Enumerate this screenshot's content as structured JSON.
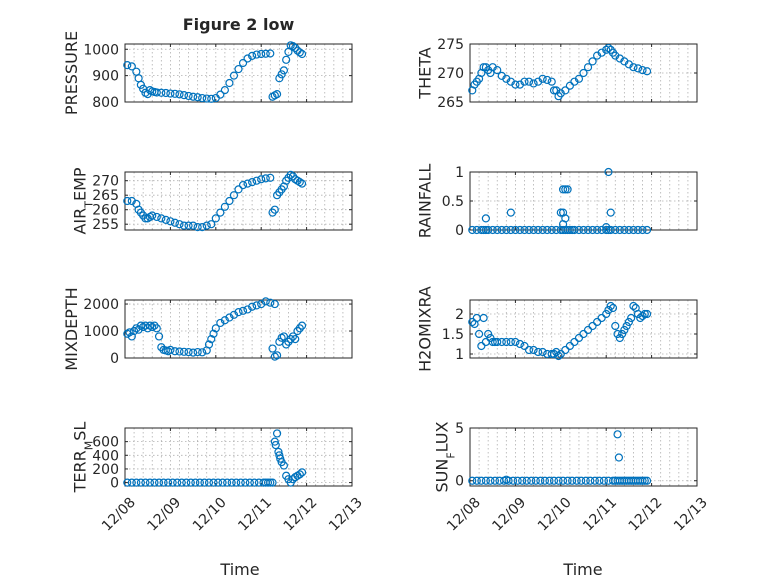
{
  "figure": {
    "x_label": "Time"
  },
  "chart_data": [
    {
      "id": "pressure",
      "type": "scatter",
      "title": "Figure 2 low",
      "ylabel": "PRESSURE",
      "xlim": [
        0,
        5
      ],
      "ylim": [
        800,
        1020
      ],
      "xticks": [
        0,
        1,
        2,
        3,
        4,
        5
      ],
      "xticklabels": [
        "12/08",
        "12/09",
        "12/10",
        "12/11",
        "12/12",
        "12/13"
      ],
      "yticks": [
        800,
        900,
        1000
      ],
      "yticklabels": [
        "800",
        "900",
        "1000"
      ],
      "yticklabel_parts": [
        [
          "800"
        ],
        [
          "900"
        ],
        [
          "1000"
        ]
      ],
      "x": [
        0.05,
        0.15,
        0.25,
        0.3,
        0.35,
        0.4,
        0.45,
        0.5,
        0.55,
        0.6,
        0.65,
        0.7,
        0.8,
        0.9,
        1.0,
        1.1,
        1.2,
        1.3,
        1.4,
        1.5,
        1.6,
        1.7,
        1.8,
        1.9,
        2.0,
        2.1,
        2.2,
        2.3,
        2.4,
        2.5,
        2.6,
        2.7,
        2.8,
        2.9,
        3.0,
        3.1,
        3.2,
        3.25,
        3.3,
        3.35,
        3.4,
        3.45,
        3.5,
        3.55,
        3.6,
        3.65,
        3.7,
        3.75,
        3.8,
        3.85,
        3.9
      ],
      "y": [
        940,
        935,
        915,
        890,
        865,
        850,
        835,
        830,
        845,
        840,
        838,
        836,
        835,
        834,
        832,
        831,
        829,
        826,
        823,
        820,
        818,
        815,
        813,
        812,
        815,
        828,
        845,
        872,
        900,
        925,
        948,
        965,
        975,
        980,
        982,
        983,
        984,
        820,
        825,
        830,
        890,
        905,
        920,
        960,
        990,
        1015,
        1012,
        1005,
        995,
        988,
        982
      ]
    },
    {
      "id": "theta",
      "type": "scatter",
      "title": "",
      "ylabel": "THETA",
      "xlim": [
        0,
        5
      ],
      "ylim": [
        265,
        275
      ],
      "xticks": [
        0,
        1,
        2,
        3,
        4,
        5
      ],
      "xticklabels": [
        "12/08",
        "12/09",
        "12/10",
        "12/11",
        "12/12",
        "12/13"
      ],
      "yticks": [
        265,
        270,
        275
      ],
      "yticklabels": [
        "265",
        "270",
        "275"
      ],
      "yticklabel_parts": [
        [
          "265"
        ],
        [
          "270"
        ],
        [
          "275"
        ]
      ],
      "x": [
        0.05,
        0.1,
        0.15,
        0.2,
        0.25,
        0.3,
        0.35,
        0.4,
        0.45,
        0.5,
        0.6,
        0.7,
        0.8,
        0.9,
        1.0,
        1.1,
        1.2,
        1.3,
        1.4,
        1.5,
        1.6,
        1.7,
        1.8,
        1.85,
        1.9,
        1.95,
        2.0,
        2.1,
        2.2,
        2.3,
        2.4,
        2.5,
        2.6,
        2.7,
        2.8,
        2.9,
        3.0,
        3.05,
        3.1,
        3.15,
        3.2,
        3.3,
        3.4,
        3.5,
        3.6,
        3.7,
        3.8,
        3.9
      ],
      "y": [
        267,
        268,
        268.5,
        269,
        270,
        271,
        271,
        270.5,
        270,
        271,
        270.5,
        269.5,
        269,
        268.5,
        268,
        268,
        268.5,
        268.5,
        268.2,
        268.5,
        269,
        268.8,
        268.5,
        267,
        267,
        266,
        266.5,
        267,
        267.8,
        268.5,
        269,
        270,
        271,
        272,
        273,
        273.5,
        274,
        274.3,
        274,
        273.5,
        273,
        272.5,
        272,
        271.5,
        271,
        270.8,
        270.5,
        270.3
      ]
    },
    {
      "id": "air_temp",
      "type": "scatter",
      "title": "",
      "ylabel": "AIR_TEMP",
      "xlim": [
        0,
        5
      ],
      "ylim": [
        253,
        273
      ],
      "xticks": [
        0,
        1,
        2,
        3,
        4,
        5
      ],
      "xticklabels": [
        "12/08",
        "12/09",
        "12/10",
        "12/11",
        "12/12",
        "12/13"
      ],
      "yticks": [
        255,
        260,
        265,
        270
      ],
      "yticklabels": [
        "255",
        "260",
        "265",
        "270"
      ],
      "yticklabel_parts": [
        [
          "255"
        ],
        [
          "260"
        ],
        [
          "265"
        ],
        [
          "270"
        ]
      ],
      "x": [
        0.05,
        0.15,
        0.25,
        0.3,
        0.35,
        0.4,
        0.45,
        0.5,
        0.55,
        0.6,
        0.7,
        0.8,
        0.9,
        1.0,
        1.1,
        1.2,
        1.3,
        1.4,
        1.5,
        1.6,
        1.7,
        1.8,
        1.9,
        2.0,
        2.1,
        2.2,
        2.3,
        2.4,
        2.5,
        2.6,
        2.7,
        2.8,
        2.9,
        3.0,
        3.1,
        3.2,
        3.25,
        3.3,
        3.35,
        3.4,
        3.45,
        3.5,
        3.55,
        3.6,
        3.65,
        3.7,
        3.75,
        3.8,
        3.85,
        3.9
      ],
      "y": [
        263,
        263,
        262,
        260,
        259,
        258,
        257,
        257,
        257.5,
        258,
        257.5,
        257,
        256.5,
        256,
        255.5,
        255,
        254.5,
        254.5,
        254.5,
        254,
        254,
        254.5,
        255,
        257,
        259,
        261,
        263,
        265,
        267,
        268.5,
        269,
        269.5,
        270,
        270.5,
        270.8,
        271,
        259,
        260,
        265,
        266,
        267,
        268,
        270,
        271,
        272,
        271.5,
        270.5,
        270,
        269.5,
        269
      ]
    },
    {
      "id": "rainfall",
      "type": "scatter",
      "title": "",
      "ylabel": "RAINFALL",
      "xlim": [
        0,
        5
      ],
      "ylim": [
        0,
        1
      ],
      "xticks": [
        0,
        1,
        2,
        3,
        4,
        5
      ],
      "xticklabels": [
        "12/08",
        "12/09",
        "12/10",
        "12/11",
        "12/12",
        "12/13"
      ],
      "yticks": [
        0,
        0.5,
        1
      ],
      "yticklabels": [
        "0",
        "0.5",
        "1"
      ],
      "yticklabel_parts": [
        [
          "0"
        ],
        [
          "0.5"
        ],
        [
          "1"
        ]
      ],
      "x": [
        0.05,
        0.15,
        0.25,
        0.3,
        0.35,
        0.4,
        0.5,
        0.6,
        0.7,
        0.8,
        0.9,
        1.0,
        1.1,
        1.2,
        1.3,
        1.4,
        1.5,
        1.6,
        1.7,
        1.8,
        1.9,
        2.0,
        2.05,
        2.1,
        2.15,
        2.2,
        2.25,
        2.3,
        2.4,
        2.5,
        2.6,
        2.7,
        2.8,
        2.9,
        3.0,
        3.05,
        3.1,
        3.2,
        3.3,
        3.4,
        3.5,
        3.6,
        3.7,
        3.8,
        3.9,
        0.35,
        0.9,
        2.0,
        2.05,
        2.1,
        2.15,
        2.05,
        2.1,
        2.05,
        3.05,
        3.1,
        3.0
      ],
      "y": [
        0,
        0,
        0,
        0,
        0,
        0,
        0,
        0,
        0,
        0,
        0,
        0,
        0,
        0,
        0,
        0,
        0,
        0,
        0,
        0,
        0,
        0,
        0,
        0,
        0,
        0,
        0,
        0,
        0,
        0,
        0,
        0,
        0,
        0,
        0,
        0,
        0,
        0,
        0,
        0,
        0,
        0,
        0,
        0,
        0,
        0.2,
        0.3,
        0.3,
        0.7,
        0.7,
        0.7,
        0.3,
        0.2,
        0.1,
        1.0,
        0.3,
        0.05
      ]
    },
    {
      "id": "mixdepth",
      "type": "scatter",
      "title": "",
      "ylabel": "MIXDEPTH",
      "xlim": [
        0,
        5
      ],
      "ylim": [
        0,
        2150
      ],
      "xticks": [
        0,
        1,
        2,
        3,
        4,
        5
      ],
      "xticklabels": [
        "12/08",
        "12/09",
        "12/10",
        "12/11",
        "12/12",
        "12/13"
      ],
      "yticks": [
        0,
        1000,
        2000
      ],
      "yticklabels": [
        "0",
        "1000",
        "2000"
      ],
      "yticklabel_parts": [
        [
          "0"
        ],
        [
          "1000"
        ],
        [
          "2000"
        ]
      ],
      "x": [
        0.05,
        0.1,
        0.15,
        0.2,
        0.25,
        0.3,
        0.35,
        0.4,
        0.45,
        0.5,
        0.55,
        0.6,
        0.65,
        0.7,
        0.75,
        0.8,
        0.85,
        0.9,
        0.95,
        1.0,
        1.1,
        1.2,
        1.3,
        1.4,
        1.5,
        1.6,
        1.7,
        1.8,
        1.85,
        1.9,
        1.95,
        2.0,
        2.1,
        2.2,
        2.3,
        2.4,
        2.5,
        2.6,
        2.7,
        2.8,
        2.9,
        3.0,
        3.1,
        3.2,
        3.3,
        3.25,
        3.3,
        3.35,
        3.4,
        3.45,
        3.5,
        3.55,
        3.6,
        3.65,
        3.7,
        3.75,
        3.8,
        3.85,
        3.9
      ],
      "y": [
        900,
        950,
        800,
        1000,
        1100,
        1050,
        1200,
        1150,
        1200,
        1100,
        1200,
        1150,
        1200,
        1100,
        800,
        400,
        300,
        280,
        250,
        300,
        250,
        240,
        230,
        220,
        200,
        220,
        210,
        280,
        500,
        700,
        900,
        1100,
        1300,
        1400,
        1500,
        1600,
        1700,
        1750,
        1800,
        1900,
        1950,
        2000,
        2100,
        2050,
        2000,
        350,
        50,
        100,
        600,
        750,
        800,
        500,
        600,
        700,
        800,
        700,
        1000,
        1100,
        1200
      ]
    },
    {
      "id": "h2omixra",
      "type": "scatter",
      "title": "",
      "ylabel": "H2OMIXRA",
      "xlim": [
        0,
        5
      ],
      "ylim": [
        0.9,
        2.35
      ],
      "xticks": [
        0,
        1,
        2,
        3,
        4,
        5
      ],
      "xticklabels": [
        "12/08",
        "12/09",
        "12/10",
        "12/11",
        "12/12",
        "12/13"
      ],
      "yticks": [
        1,
        1.5,
        2
      ],
      "yticklabels": [
        "1",
        "1.5",
        "2"
      ],
      "yticklabel_parts": [
        [
          "1"
        ],
        [
          "1.5"
        ],
        [
          "2"
        ]
      ],
      "x": [
        0.05,
        0.1,
        0.15,
        0.2,
        0.25,
        0.3,
        0.35,
        0.4,
        0.45,
        0.5,
        0.55,
        0.6,
        0.7,
        0.8,
        0.9,
        1.0,
        1.1,
        1.2,
        1.3,
        1.4,
        1.5,
        1.6,
        1.7,
        1.8,
        1.85,
        1.9,
        1.95,
        2.0,
        2.1,
        2.2,
        2.3,
        2.4,
        2.5,
        2.6,
        2.7,
        2.8,
        2.9,
        3.0,
        3.05,
        3.1,
        3.15,
        3.2,
        3.25,
        3.3,
        3.35,
        3.4,
        3.45,
        3.5,
        3.55,
        3.6,
        3.65,
        3.7,
        3.75,
        3.8,
        3.85,
        3.9
      ],
      "y": [
        1.8,
        1.75,
        1.9,
        1.5,
        1.2,
        1.9,
        1.3,
        1.5,
        1.4,
        1.3,
        1.3,
        1.3,
        1.3,
        1.3,
        1.3,
        1.3,
        1.25,
        1.2,
        1.1,
        1.1,
        1.05,
        1.05,
        1.0,
        1.0,
        1.0,
        1.05,
        0.95,
        1.0,
        1.1,
        1.2,
        1.3,
        1.4,
        1.5,
        1.6,
        1.7,
        1.8,
        1.9,
        2.0,
        2.1,
        2.2,
        2.15,
        1.7,
        1.5,
        1.4,
        1.5,
        1.6,
        1.7,
        1.8,
        1.9,
        2.2,
        2.15,
        2.0,
        1.9,
        1.95,
        2.0,
        2.0
      ]
    },
    {
      "id": "terr_msl",
      "type": "scatter",
      "title": "",
      "ylabel": "TERR_MSL",
      "xlim": [
        0,
        5
      ],
      "ylim": [
        -50,
        800
      ],
      "xticks": [
        0,
        1,
        2,
        3,
        4,
        5
      ],
      "xticklabels": [
        "12/08",
        "12/09",
        "12/10",
        "12/11",
        "12/12",
        "12/13"
      ],
      "yticks": [
        0,
        200,
        400,
        600
      ],
      "yticklabels": [
        "0",
        "200",
        "400",
        "600"
      ],
      "yticklabel_parts": [
        [
          "0"
        ],
        [
          "200"
        ],
        [
          "400"
        ],
        [
          "600"
        ]
      ],
      "x": [
        0.05,
        0.15,
        0.25,
        0.35,
        0.45,
        0.55,
        0.65,
        0.75,
        0.85,
        0.95,
        1.05,
        1.15,
        1.25,
        1.35,
        1.45,
        1.55,
        1.65,
        1.75,
        1.85,
        1.95,
        2.05,
        2.15,
        2.25,
        2.35,
        2.45,
        2.55,
        2.65,
        2.75,
        2.85,
        2.95,
        3.05,
        3.1,
        3.15,
        3.2,
        3.25,
        3.3,
        3.32,
        3.35,
        3.38,
        3.4,
        3.42,
        3.45,
        3.5,
        3.55,
        3.6,
        3.65,
        3.7,
        3.75,
        3.8,
        3.85,
        3.9
      ],
      "y": [
        0,
        0,
        0,
        0,
        0,
        0,
        0,
        0,
        0,
        0,
        0,
        0,
        0,
        0,
        0,
        0,
        0,
        0,
        0,
        0,
        0,
        0,
        0,
        0,
        0,
        0,
        0,
        0,
        0,
        0,
        0,
        0,
        0,
        0,
        0,
        600,
        550,
        720,
        450,
        400,
        350,
        300,
        250,
        100,
        50,
        0,
        50,
        80,
        100,
        120,
        150
      ]
    },
    {
      "id": "sun_flux",
      "type": "scatter",
      "title": "",
      "ylabel": "SUN_FLUX",
      "xlim": [
        0,
        5
      ],
      "ylim": [
        -0.5,
        5
      ],
      "xticks": [
        0,
        1,
        2,
        3,
        4,
        5
      ],
      "xticklabels": [
        "12/08",
        "12/09",
        "12/10",
        "12/11",
        "12/12",
        "12/13"
      ],
      "yticks": [
        0,
        5
      ],
      "yticklabels": [
        "0",
        "5"
      ],
      "yticklabel_parts": [
        [
          "0"
        ],
        [
          "5"
        ]
      ],
      "x": [
        0.05,
        0.15,
        0.25,
        0.35,
        0.45,
        0.55,
        0.65,
        0.75,
        0.85,
        0.95,
        1.05,
        1.15,
        1.25,
        1.35,
        1.45,
        1.55,
        1.65,
        1.75,
        1.85,
        1.95,
        2.05,
        2.15,
        2.25,
        2.35,
        2.45,
        2.55,
        2.65,
        2.75,
        2.85,
        2.95,
        3.05,
        3.15,
        3.2,
        3.25,
        3.3,
        3.35,
        3.4,
        3.45,
        3.5,
        3.55,
        3.6,
        3.65,
        3.7,
        3.75,
        3.8,
        3.85,
        3.9,
        0.8,
        3.25,
        3.28
      ],
      "y": [
        0,
        0,
        0,
        0,
        0,
        0,
        0,
        0,
        0,
        0,
        0,
        0,
        0,
        0,
        0,
        0,
        0,
        0,
        0,
        0,
        0,
        0,
        0,
        0,
        0,
        0,
        0,
        0,
        0,
        0,
        0,
        0,
        0,
        0,
        0,
        0,
        0,
        0,
        0,
        0,
        0,
        0,
        0,
        0,
        0,
        0,
        0,
        0.1,
        4.4,
        2.2
      ]
    }
  ]
}
